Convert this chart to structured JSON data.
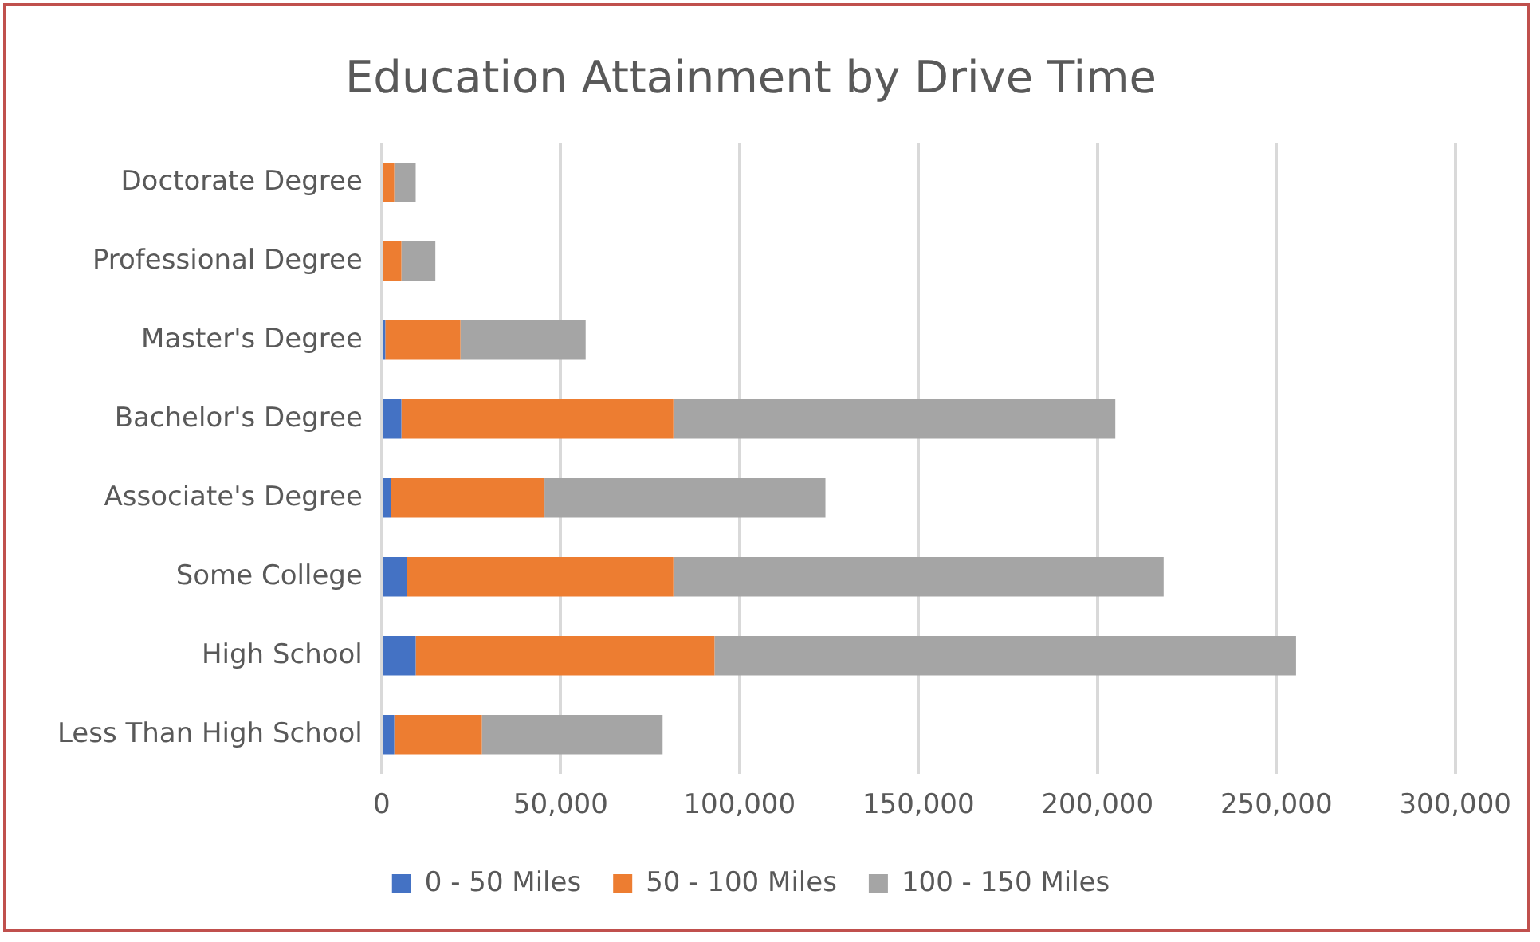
{
  "chart_data": {
    "type": "bar",
    "title": "Education Attainment by Drive Time",
    "orientation": "horizontal",
    "stacked": true,
    "categories": [
      "Doctorate Degree",
      "Professional Degree",
      "Master's Degree",
      "Bachelor's Degree",
      "Associate's Degree",
      "Some College",
      "High School",
      "Less Than High School"
    ],
    "series": [
      {
        "name": "0 - 50 Miles",
        "color": "#4472c4",
        "values": [
          null,
          null,
          1000,
          5500,
          2500,
          7000,
          9500,
          3500
        ]
      },
      {
        "name": "50 - 100 Miles",
        "color": "#ed7d31",
        "values": [
          3500,
          5500,
          21000,
          76000,
          43000,
          74500,
          83500,
          24500
        ]
      },
      {
        "name": "100 - 150 Miles",
        "color": "#a5a5a5",
        "values": [
          6000,
          9500,
          35000,
          123500,
          78500,
          137000,
          162500,
          50500
        ]
      }
    ],
    "xlim": [
      0,
      300000
    ],
    "xticks": [
      0,
      {
        "value": 50000,
        "label": "50,000"
      },
      {
        "value": 100000,
        "label": "100,000"
      },
      {
        "value": 150000,
        "label": "150,000"
      },
      {
        "value": 200000,
        "label": "200,000"
      },
      {
        "value": 250000,
        "label": "250,000"
      },
      {
        "value": 300000,
        "label": "300,000"
      }
    ],
    "grid": "x",
    "legend": "bottom"
  }
}
